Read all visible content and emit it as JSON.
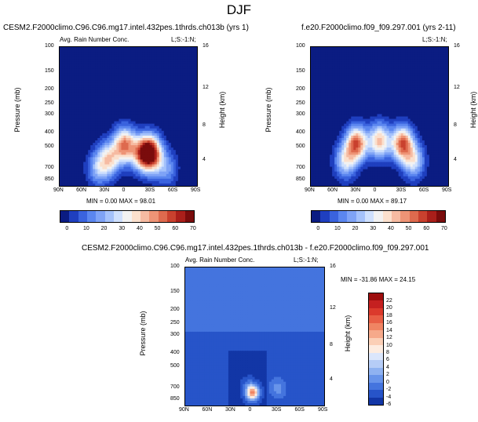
{
  "page_title": "DJF",
  "panels": [
    {
      "title_left": "CESM2.F2000climo.C96.C96.mg17.intel.432pes.1thrds.ch013b (yrs 1)",
      "subtitle_left": "Avg. Rain Number Conc.",
      "subtitle_right": "L;S:-1:N;",
      "minmax": "MIN =   0.00   MAX =  98.01",
      "ylabel_left": "Pressure (mb)",
      "ylabel_right": "Height (km)"
    },
    {
      "title_left": "f.e20.F2000climo.f09_f09.297.001 (yrs 2-11)",
      "subtitle_left": "",
      "subtitle_right": "L;S:-1:N;",
      "minmax": "MIN =   0.00   MAX =  89.17",
      "ylabel_left": "Pressure (mb)",
      "ylabel_right": "Height (km)"
    },
    {
      "title_left": "CESM2.F2000climo.C96.C96.mg17.intel.432pes.1thrds.ch013b - f.e20.F2000climo.f09_f09.297.001",
      "subtitle_left": "Avg. Rain Number Conc.",
      "subtitle_right": "L;S:-1:N;",
      "minmax": "MIN = -31.86   MAX =  24.15",
      "ylabel_left": "Pressure (mb)",
      "ylabel_right": "Height (km)"
    }
  ],
  "chart_data": [
    {
      "type": "heatmap",
      "title": "CESM2.F2000climo.C96.C96.mg17.intel.432pes.1thrds.ch013b (yrs 1)",
      "variable": "Avg. Rain Number Conc.",
      "xlabel": "",
      "ylabel": "Pressure (mb)",
      "y2label": "Height (km)",
      "x_ticks": [
        "90N",
        "60N",
        "30N",
        "0",
        "30S",
        "60S",
        "90S"
      ],
      "y_ticks": [
        "100",
        "150",
        "200",
        "250",
        "300",
        "400",
        "500",
        "700",
        "850"
      ],
      "y2_ticks": [
        "16",
        "12",
        "8",
        "4"
      ],
      "ylim": [
        100,
        925
      ],
      "min": 0.0,
      "max": 98.01,
      "colorbar_levels": [
        "0",
        "10",
        "20",
        "30",
        "40",
        "50",
        "60",
        "70"
      ],
      "features": [
        {
          "lat": -30,
          "p": 550,
          "value": 80
        },
        {
          "lat": 5,
          "p": 480,
          "value": 65
        },
        {
          "lat": -18,
          "p": 550,
          "value": 55
        },
        {
          "lat": 25,
          "p": 600,
          "value": 45
        },
        {
          "lat": 40,
          "p": 700,
          "value": 30
        },
        {
          "lat": -50,
          "p": 700,
          "value": 25
        }
      ]
    },
    {
      "type": "heatmap",
      "title": "f.e20.F2000climo.f09_f09.297.001 (yrs 2-11)",
      "variable": "",
      "xlabel": "",
      "ylabel": "Pressure (mb)",
      "y2label": "Height (km)",
      "x_ticks": [
        "90N",
        "60N",
        "30N",
        "0",
        "30S",
        "60S",
        "90S"
      ],
      "y_ticks": [
        "100",
        "150",
        "200",
        "250",
        "300",
        "400",
        "500",
        "700",
        "850"
      ],
      "y2_ticks": [
        "16",
        "12",
        "8",
        "4"
      ],
      "ylim": [
        100,
        925
      ],
      "min": 0.0,
      "max": 89.17,
      "colorbar_levels": [
        "0",
        "10",
        "20",
        "30",
        "40",
        "50",
        "60",
        "70"
      ],
      "features": [
        {
          "lat": 30,
          "p": 470,
          "value": 70
        },
        {
          "lat": -30,
          "p": 470,
          "value": 70
        },
        {
          "lat": 0,
          "p": 450,
          "value": 55
        },
        {
          "lat": 45,
          "p": 620,
          "value": 40
        },
        {
          "lat": -45,
          "p": 620,
          "value": 40
        }
      ]
    },
    {
      "type": "heatmap",
      "title": "CESM2.F2000climo.C96.C96.mg17.intel.432pes.1thrds.ch013b - f.e20.F2000climo.f09_f09.297.001",
      "variable": "Avg. Rain Number Conc.",
      "xlabel": "",
      "ylabel": "Pressure (mb)",
      "y2label": "Height (km)",
      "x_ticks": [
        "90N",
        "60N",
        "30N",
        "0",
        "30S",
        "60S",
        "90S"
      ],
      "y_ticks": [
        "100",
        "150",
        "200",
        "250",
        "300",
        "400",
        "500",
        "700",
        "850"
      ],
      "y2_ticks": [
        "16",
        "12",
        "8",
        "4"
      ],
      "ylim": [
        100,
        925
      ],
      "min": -31.86,
      "max": 24.15,
      "colorbar_levels": [
        "22",
        "20",
        "18",
        "16",
        "14",
        "12",
        "10",
        "8",
        "6",
        "4",
        "2",
        "0",
        "-2",
        "-4",
        "-6"
      ],
      "features": [
        {
          "lat": 3,
          "p": 750,
          "value": 22
        },
        {
          "lat": 20,
          "p": 500,
          "value": -6
        },
        {
          "lat": 10,
          "p": 650,
          "value": 4
        },
        {
          "lat": -30,
          "p": 700,
          "value": 6
        }
      ]
    }
  ],
  "colors": {
    "seq": [
      "#0b1c82",
      "#1f3fbf",
      "#3a63de",
      "#5b86ef",
      "#7fa3f6",
      "#a5c2fb",
      "#cfe0fd",
      "#f2f2f2",
      "#fbe0cd",
      "#f6bba2",
      "#ee9476",
      "#de6a4e",
      "#c9412e",
      "#aa1f1a",
      "#7a0c0c"
    ],
    "diff": [
      "#9e0e0e",
      "#c52020",
      "#db3a2c",
      "#e85e45",
      "#f08463",
      "#f6a98a",
      "#fbcfb6",
      "#fdece0",
      "#dbe6fb",
      "#b6cdf7",
      "#8fb2f1",
      "#6894ea",
      "#4474de",
      "#2754c9",
      "#1236a6"
    ]
  }
}
